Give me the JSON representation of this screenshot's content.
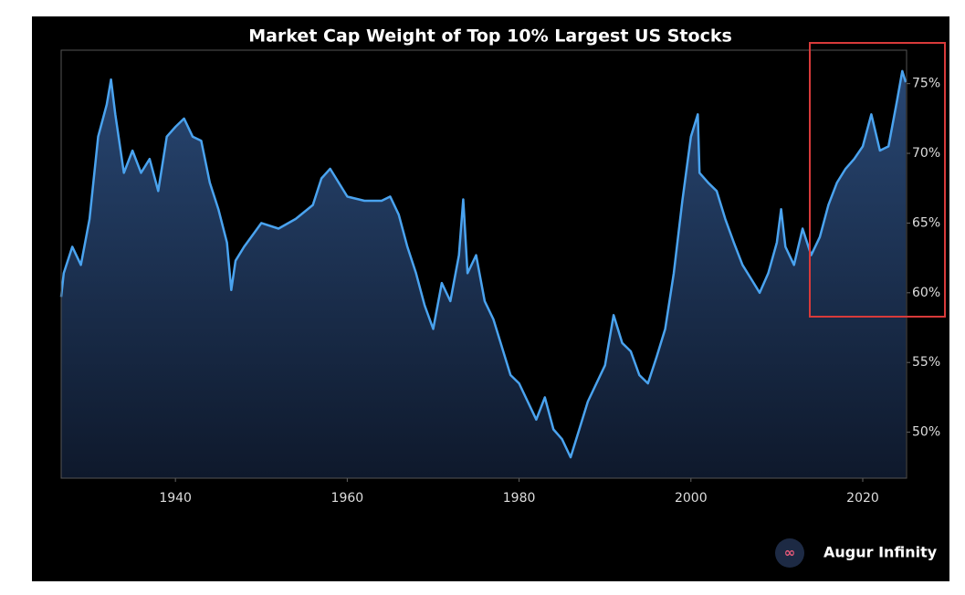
{
  "chart_data": {
    "type": "line",
    "title": "Market Cap Weight of Top 10% Largest US Stocks",
    "x": [
      1926.7,
      1927,
      1928,
      1929,
      1930,
      1931,
      1932,
      1932.5,
      1933,
      1934,
      1935,
      1936,
      1937,
      1938,
      1939,
      1940,
      1941,
      1942,
      1943,
      1944,
      1945,
      1946,
      1946.5,
      1947,
      1948,
      1950,
      1952,
      1954,
      1956,
      1957,
      1958,
      1959,
      1960,
      1962,
      1964,
      1965,
      1966,
      1967,
      1968,
      1969,
      1970,
      1971,
      1972,
      1973,
      1973.5,
      1974,
      1975,
      1976,
      1977,
      1978,
      1979,
      1980,
      1981,
      1982,
      1983,
      1984,
      1985,
      1986,
      1987,
      1988,
      1989,
      1990,
      1991,
      1992,
      1993,
      1994,
      1995,
      1996,
      1997,
      1998,
      1999,
      2000,
      2000.8,
      2001,
      2002,
      2003,
      2004,
      2005,
      2006,
      2007,
      2008,
      2009,
      2010,
      2010.5,
      2011,
      2012,
      2013,
      2014,
      2015,
      2016,
      2017,
      2018,
      2019,
      2020,
      2021,
      2022,
      2023,
      2024,
      2024.6,
      2025
    ],
    "values": [
      59.7,
      61.4,
      63.3,
      62,
      65.3,
      71.2,
      73.5,
      75.3,
      72.8,
      68.6,
      70.2,
      68.6,
      69.6,
      67.3,
      71.2,
      71.9,
      72.5,
      71.2,
      70.9,
      67.9,
      66,
      63.6,
      60.2,
      62.3,
      63.3,
      65,
      64.6,
      65.3,
      66.3,
      68.2,
      68.9,
      67.9,
      66.9,
      66.6,
      66.6,
      66.9,
      65.6,
      63.3,
      61.4,
      59.1,
      57.4,
      60.7,
      59.4,
      62.7,
      66.7,
      61.4,
      62.7,
      59.4,
      58.1,
      56.1,
      54.1,
      53.5,
      52.2,
      50.9,
      52.5,
      50.2,
      49.5,
      48.2,
      50.2,
      52.2,
      53.5,
      54.8,
      58.4,
      56.4,
      55.8,
      54.1,
      53.5,
      55.4,
      57.4,
      61.4,
      66.6,
      71.2,
      72.8,
      68.6,
      67.9,
      67.3,
      65.3,
      63.6,
      62,
      61,
      60,
      61.4,
      63.6,
      66,
      63.3,
      62,
      64.6,
      62.7,
      64,
      66.3,
      67.9,
      68.9,
      69.6,
      70.5,
      72.8,
      70.2,
      70.5,
      73.8,
      75.9,
      75.1
    ],
    "color": "#4aa3ef",
    "xlim": [
      1926.7,
      2025.1
    ],
    "xticks": [
      1940,
      1960,
      1980,
      2000,
      2020
    ],
    "ylim": [
      46.7,
      77.4
    ],
    "yticks": [
      {
        "value": 50,
        "label": "50%"
      },
      {
        "value": 55,
        "label": "55%"
      },
      {
        "value": 60,
        "label": "60%"
      },
      {
        "value": 65,
        "label": "65%"
      },
      {
        "value": 70,
        "label": "70%"
      },
      {
        "value": 75,
        "label": "75%"
      }
    ],
    "brand": "Augur Infinity"
  }
}
